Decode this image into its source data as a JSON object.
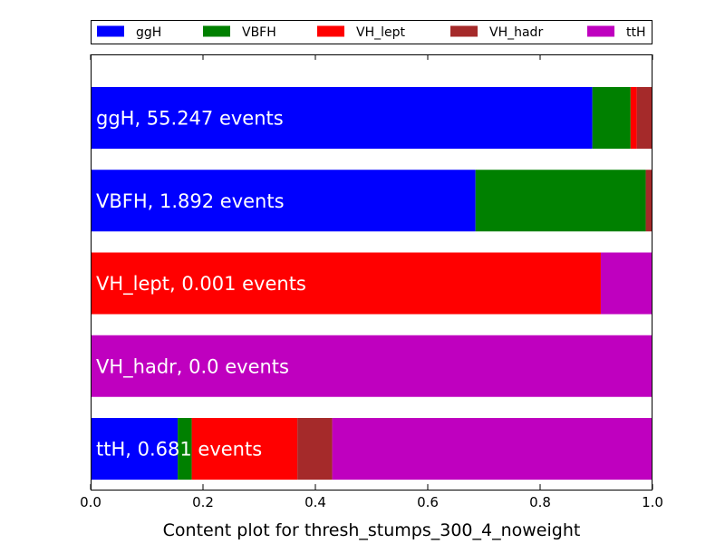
{
  "chart_data": {
    "type": "bar",
    "orientation": "horizontal",
    "stacked": true,
    "xlabel": "Content plot for thresh_stumps_300_4_noweight",
    "xlim": [
      0.0,
      1.0
    ],
    "x_ticks": [
      "0.0",
      "0.2",
      "0.4",
      "0.6",
      "0.8",
      "1.0"
    ],
    "grid": false,
    "legend_position": "top",
    "categories": [
      "ggH",
      "VBFH",
      "VH_lept",
      "VH_hadr",
      "ttH"
    ],
    "bar_labels": [
      "ggH, 55.247 events",
      "VBFH, 1.892 events",
      "VH_lept, 0.001 events",
      "VH_hadr, 0.0 events",
      "ttH, 0.681 events"
    ],
    "series": [
      {
        "name": "ggH",
        "color": "#0000ff",
        "values": [
          0.893,
          0.685,
          0.0,
          0.0,
          0.155
        ]
      },
      {
        "name": "VBFH",
        "color": "#008000",
        "values": [
          0.068,
          0.303,
          0.0,
          0.0,
          0.025
        ]
      },
      {
        "name": "VH_lept",
        "color": "#ff0000",
        "values": [
          0.011,
          0.0,
          0.908,
          0.0,
          0.188
        ]
      },
      {
        "name": "VH_hadr",
        "color": "#a52a2a",
        "values": [
          0.028,
          0.012,
          0.0,
          0.0,
          0.062
        ]
      },
      {
        "name": "ttH",
        "color": "#bf00bf",
        "values": [
          0.0,
          0.0,
          0.092,
          1.0,
          0.57
        ]
      }
    ]
  }
}
